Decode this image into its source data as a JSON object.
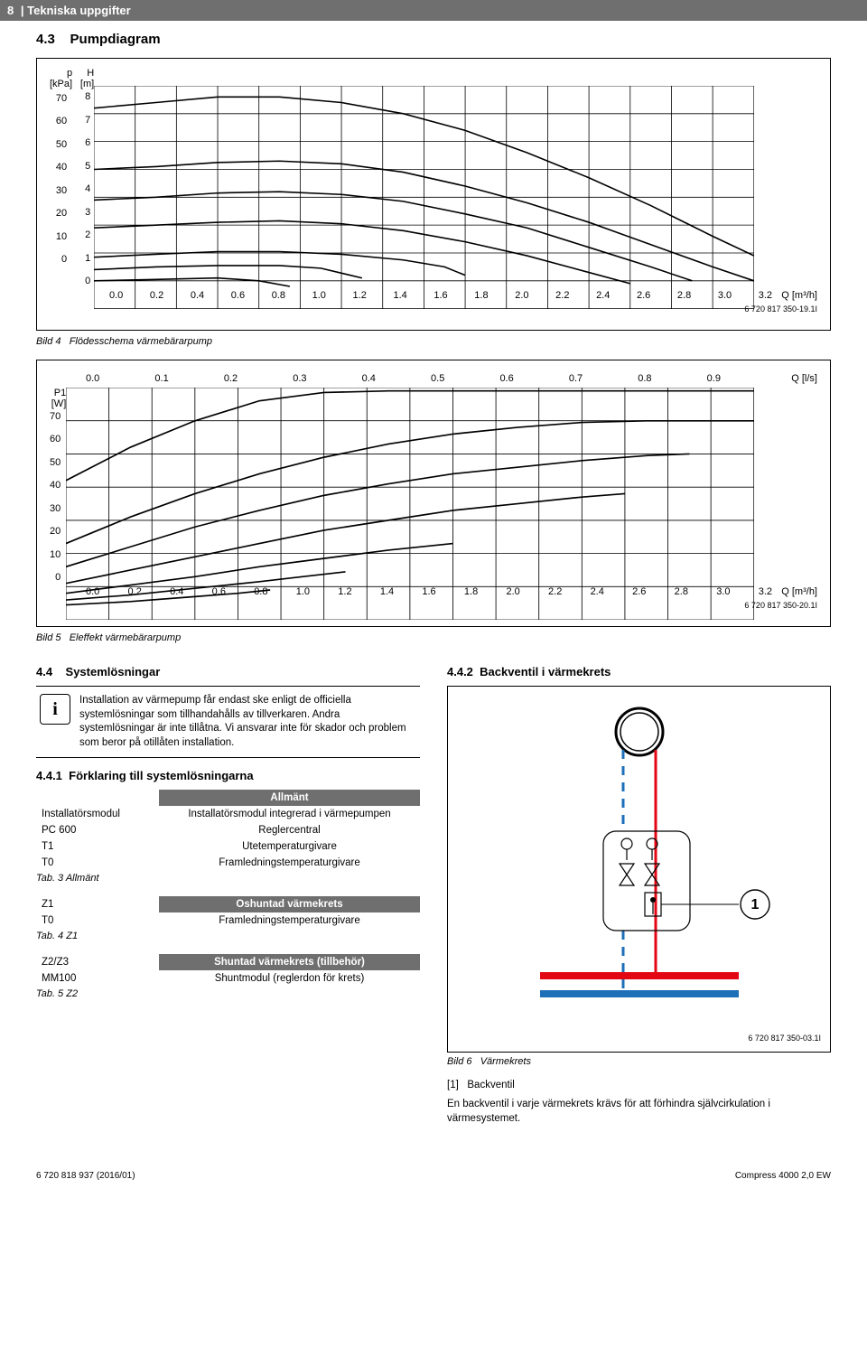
{
  "header": {
    "chapnum": "8",
    "chapter": "Tekniska uppgifter"
  },
  "sec43": {
    "num": "4.3",
    "title": "Pumpdiagram"
  },
  "chart1": {
    "y1_label": "p\n[kPa]",
    "y2_label": "H\n[m]",
    "y1_ticks": [
      "70",
      "60",
      "50",
      "40",
      "30",
      "20",
      "10",
      "0"
    ],
    "y2_ticks": [
      "8",
      "7",
      "6",
      "5",
      "4",
      "3",
      "2",
      "1",
      "0"
    ],
    "x_ticks": [
      "0.0",
      "0.2",
      "0.4",
      "0.6",
      "0.8",
      "1.0",
      "1.2",
      "1.4",
      "1.6",
      "1.8",
      "2.0",
      "2.2",
      "2.4",
      "2.6",
      "2.8",
      "3.0",
      "3.2"
    ],
    "x_unit": "Q [m³/h]",
    "docref": "6 720 817 350-19.1I",
    "xmin": 0.0,
    "xmax": 3.2,
    "ymin": 0,
    "ymax": 8,
    "curves": [
      [
        [
          0,
          7.2
        ],
        [
          0.3,
          7.4
        ],
        [
          0.6,
          7.6
        ],
        [
          0.9,
          7.6
        ],
        [
          1.2,
          7.4
        ],
        [
          1.5,
          7.0
        ],
        [
          1.8,
          6.4
        ],
        [
          2.1,
          5.6
        ],
        [
          2.4,
          4.7
        ],
        [
          2.7,
          3.7
        ],
        [
          3.0,
          2.6
        ],
        [
          3.2,
          1.9
        ]
      ],
      [
        [
          0,
          5.0
        ],
        [
          0.3,
          5.1
        ],
        [
          0.6,
          5.25
        ],
        [
          0.9,
          5.3
        ],
        [
          1.2,
          5.2
        ],
        [
          1.5,
          4.9
        ],
        [
          1.8,
          4.4
        ],
        [
          2.1,
          3.8
        ],
        [
          2.4,
          3.1
        ],
        [
          2.7,
          2.3
        ],
        [
          3.0,
          1.5
        ],
        [
          3.2,
          1.0
        ]
      ],
      [
        [
          0,
          3.9
        ],
        [
          0.3,
          4.0
        ],
        [
          0.6,
          4.15
        ],
        [
          0.9,
          4.2
        ],
        [
          1.2,
          4.1
        ],
        [
          1.5,
          3.85
        ],
        [
          1.8,
          3.4
        ],
        [
          2.1,
          2.9
        ],
        [
          2.4,
          2.2
        ],
        [
          2.7,
          1.5
        ],
        [
          2.9,
          1.0
        ]
      ],
      [
        [
          0,
          2.9
        ],
        [
          0.3,
          3.0
        ],
        [
          0.6,
          3.1
        ],
        [
          0.9,
          3.15
        ],
        [
          1.2,
          3.05
        ],
        [
          1.5,
          2.8
        ],
        [
          1.8,
          2.4
        ],
        [
          2.1,
          1.9
        ],
        [
          2.4,
          1.3
        ],
        [
          2.6,
          0.9
        ]
      ],
      [
        [
          0,
          1.85
        ],
        [
          0.3,
          1.95
        ],
        [
          0.6,
          2.05
        ],
        [
          0.9,
          2.05
        ],
        [
          1.2,
          1.95
        ],
        [
          1.5,
          1.75
        ],
        [
          1.7,
          1.5
        ],
        [
          1.8,
          1.2
        ]
      ],
      [
        [
          0,
          1.4
        ],
        [
          0.3,
          1.5
        ],
        [
          0.6,
          1.55
        ],
        [
          0.9,
          1.55
        ],
        [
          1.1,
          1.45
        ],
        [
          1.3,
          1.1
        ]
      ],
      [
        [
          0,
          1.0
        ],
        [
          0.3,
          1.05
        ],
        [
          0.6,
          1.1
        ],
        [
          0.8,
          1.0
        ],
        [
          0.95,
          0.8
        ]
      ]
    ]
  },
  "cap4": {
    "pre": "Bild 4",
    "text": "Flödesschema värmebärarpump"
  },
  "chart2": {
    "y_label": "P1\n[W]",
    "y_ticks": [
      "70",
      "60",
      "50",
      "40",
      "30",
      "20",
      "10",
      "0"
    ],
    "x2_ticks": [
      "0.0",
      "0.1",
      "0.2",
      "0.3",
      "0.4",
      "0.5",
      "0.6",
      "0.7",
      "0.8",
      "0.9"
    ],
    "x2_unit": "Q [l/s]",
    "x_ticks": [
      "0.0",
      "0.2",
      "0.4",
      "0.6",
      "0.8",
      "1.0",
      "1.2",
      "1.4",
      "1.6",
      "1.8",
      "2.0",
      "2.2",
      "2.4",
      "2.6",
      "2.8",
      "3.0",
      "3.2"
    ],
    "x_unit": "Q [m³/h]",
    "docref": "6 720 817 350-20.1I",
    "xmin": 0.0,
    "xmax": 3.2,
    "ymin": 0,
    "ymax": 70,
    "curves": [
      [
        [
          0,
          42
        ],
        [
          0.3,
          52
        ],
        [
          0.6,
          60
        ],
        [
          0.9,
          66
        ],
        [
          1.2,
          68.5
        ],
        [
          1.5,
          69
        ],
        [
          1.8,
          69
        ],
        [
          2.1,
          69
        ],
        [
          2.4,
          69
        ],
        [
          2.7,
          69
        ],
        [
          3.0,
          69
        ],
        [
          3.2,
          69
        ]
      ],
      [
        [
          0,
          23
        ],
        [
          0.3,
          31
        ],
        [
          0.6,
          38
        ],
        [
          0.9,
          44
        ],
        [
          1.2,
          49
        ],
        [
          1.5,
          53
        ],
        [
          1.8,
          56
        ],
        [
          2.1,
          58
        ],
        [
          2.4,
          59.5
        ],
        [
          2.7,
          60
        ],
        [
          3.0,
          60
        ],
        [
          3.2,
          60
        ]
      ],
      [
        [
          0,
          16
        ],
        [
          0.3,
          22
        ],
        [
          0.6,
          28
        ],
        [
          0.9,
          33
        ],
        [
          1.2,
          37.5
        ],
        [
          1.5,
          41
        ],
        [
          1.8,
          44
        ],
        [
          2.1,
          46
        ],
        [
          2.4,
          48
        ],
        [
          2.7,
          49.5
        ],
        [
          2.9,
          50
        ]
      ],
      [
        [
          0,
          11
        ],
        [
          0.3,
          15
        ],
        [
          0.6,
          19
        ],
        [
          0.9,
          23
        ],
        [
          1.2,
          27
        ],
        [
          1.5,
          30
        ],
        [
          1.8,
          33
        ],
        [
          2.1,
          35
        ],
        [
          2.4,
          37
        ],
        [
          2.6,
          38
        ]
      ],
      [
        [
          0,
          8
        ],
        [
          0.3,
          10.5
        ],
        [
          0.6,
          13
        ],
        [
          0.9,
          16
        ],
        [
          1.2,
          18.5
        ],
        [
          1.5,
          21
        ],
        [
          1.8,
          23
        ]
      ],
      [
        [
          0,
          6
        ],
        [
          0.3,
          7.5
        ],
        [
          0.6,
          9.5
        ],
        [
          0.9,
          11.5
        ],
        [
          1.1,
          13
        ],
        [
          1.3,
          14.5
        ]
      ],
      [
        [
          0,
          4.5
        ],
        [
          0.3,
          5.5
        ],
        [
          0.6,
          7
        ],
        [
          0.8,
          8
        ],
        [
          0.95,
          9
        ]
      ]
    ]
  },
  "cap5": {
    "pre": "Bild 5",
    "text": "Eleffekt värmebärarpump"
  },
  "sec44": {
    "num": "4.4",
    "title": "Systemlösningar"
  },
  "info": {
    "text": "Installation av värmepump får endast ske enligt de officiella systemlösningar som tillhandahålls av tillverkaren. Andra systemlösningar är inte tillåtna. Vi ansvarar inte för skador och problem som beror på otillåten installation."
  },
  "sec441": {
    "num": "4.4.1",
    "title": "Förklaring till systemlösningarna"
  },
  "tab3": {
    "head": "Allmänt",
    "rows": [
      [
        "Installatörsmodul",
        "Installatörsmodul integrerad i värmepumpen"
      ],
      [
        "PC 600",
        "Reglercentral"
      ],
      [
        "T1",
        "Utetemperaturgivare"
      ],
      [
        "T0",
        "Framledningstemperaturgivare"
      ]
    ],
    "cap": "Tab. 3 Allmänt"
  },
  "tab4": {
    "head": "Oshuntad värmekrets",
    "rows": [
      [
        "Z1",
        ""
      ],
      [
        "T0",
        "Framledningstemperaturgivare"
      ]
    ],
    "cap": "Tab. 4 Z1"
  },
  "tab5": {
    "head": "Shuntad värmekrets (tillbehör)",
    "rows": [
      [
        "Z2/Z3",
        ""
      ],
      [
        "MM100",
        "Shuntmodul (reglerdon för krets)"
      ]
    ],
    "cap": "Tab. 5 Z2"
  },
  "sec442": {
    "num": "4.4.2",
    "title": "Backventil i värmekrets"
  },
  "diag": {
    "callout": "1",
    "docref": "6 720 817 350-03.1I",
    "colors": {
      "hot": "#e30613",
      "cold": "#1d6fb8",
      "dash": "#1d6fb8",
      "frame": "#000"
    }
  },
  "cap6": {
    "pre": "Bild 6",
    "text": "Värmekrets"
  },
  "legend6": {
    "key": "[1]",
    "val": "Backventil"
  },
  "para": "En backventil i varje värmekrets krävs för att förhindra självcirkulation i värmesystemet.",
  "footer": {
    "left": "6 720 818 937 (2016/01)",
    "right": "Compress 4000 2,0 EW"
  }
}
